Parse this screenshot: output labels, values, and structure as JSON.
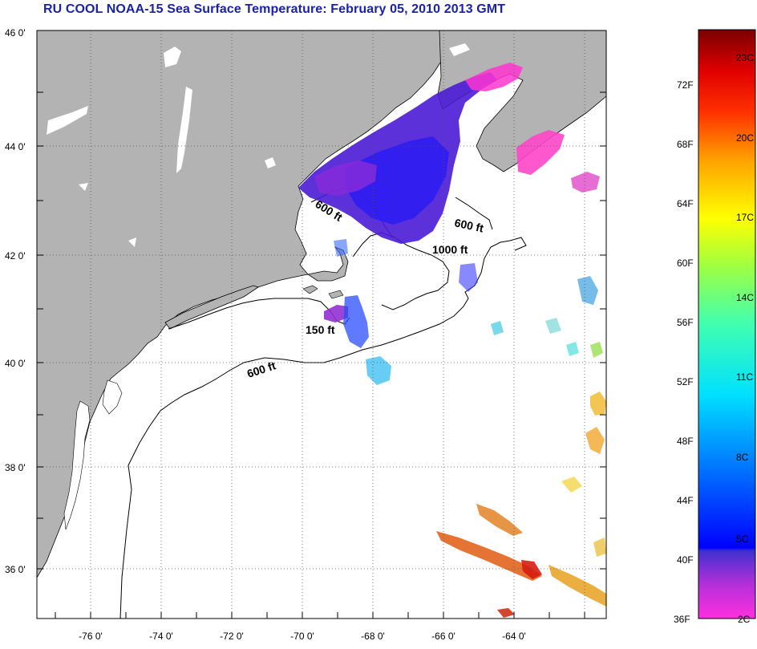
{
  "title": "RU COOL  NOAA-15  Sea Surface Temperature:  February 05, 2010 2013 GMT",
  "map": {
    "lat_labels": [
      "46 0'",
      "44 0'",
      "42 0'",
      "40 0'",
      "38 0'",
      "36 0'"
    ],
    "lon_labels": [
      "-76 0'",
      "-74 0'",
      "-72 0'",
      "-70 0'",
      "-68 0'",
      "-66 0'",
      "-64 0'"
    ],
    "depth_labels": [
      "600 ft",
      "600 ft",
      "1000 ft",
      "150 ft",
      "600 ft"
    ],
    "colors": {
      "land": "#b3b3b3",
      "water": "#ffffff",
      "grid": "#555555",
      "coast": "#000000"
    }
  },
  "colorbar": {
    "fahrenheit_labels": [
      "72F",
      "68F",
      "64F",
      "60F",
      "56F",
      "52F",
      "48F",
      "44F",
      "40F",
      "36F"
    ],
    "celsius_labels": [
      "23C",
      "20C",
      "17C",
      "14C",
      "11C",
      "8C",
      "5C",
      "2C"
    ]
  }
}
